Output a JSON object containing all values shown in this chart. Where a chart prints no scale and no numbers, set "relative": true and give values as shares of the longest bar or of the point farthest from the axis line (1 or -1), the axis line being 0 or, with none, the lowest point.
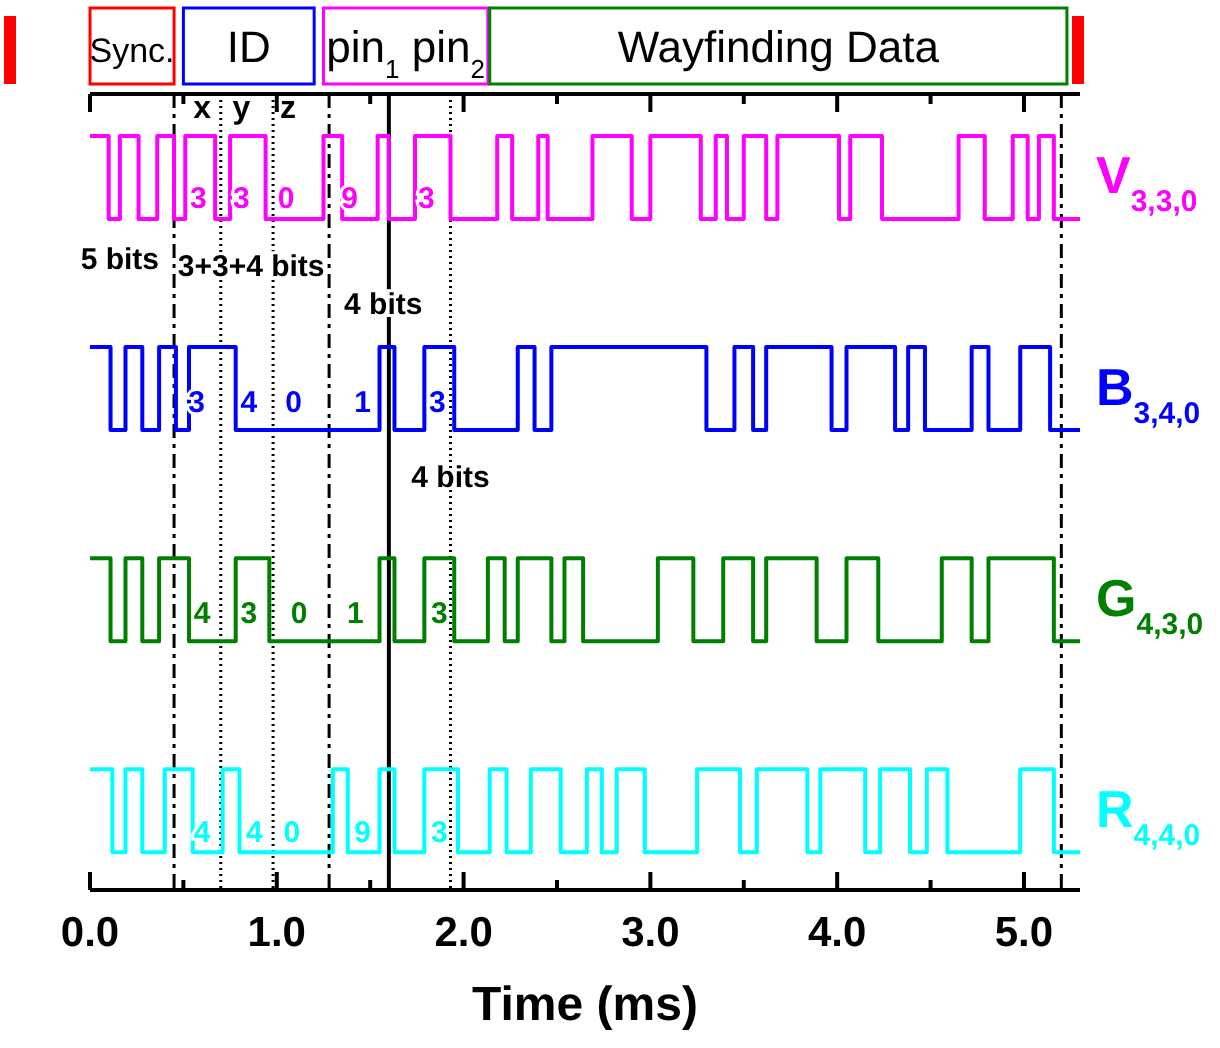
{
  "chart_data": {
    "type": "step",
    "relative": true,
    "xlabel": "Time (ms)",
    "legend": false,
    "xlim": [
      0,
      5.3
    ],
    "xticks": [
      {
        "value": 0,
        "label": "0.0"
      },
      {
        "value": 0.5,
        "label": null
      },
      {
        "value": 1,
        "label": "1.0"
      },
      {
        "value": 1.5,
        "label": null
      },
      {
        "value": 2,
        "label": "2.0"
      },
      {
        "value": 2.5,
        "label": null
      },
      {
        "value": 3,
        "label": "3.0"
      },
      {
        "value": 3.5,
        "label": null
      },
      {
        "value": 4,
        "label": "4.0"
      },
      {
        "value": 4.5,
        "label": null
      },
      {
        "value": 5,
        "label": "5.0"
      }
    ],
    "series": [
      {
        "name": "V$_{3,3,0}$",
        "color": "#ff00ff",
        "x": [
          0,
          0.1,
          0.16,
          0.26,
          0.36,
          0.45,
          0.51,
          0.67,
          0.75,
          0.94,
          1.25,
          1.35,
          1.54,
          1.6,
          1.74,
          1.93,
          2.18,
          2.26,
          2.4,
          2.45,
          2.69,
          2.9,
          3.0,
          3.27,
          3.35,
          3.41,
          3.5,
          3.62,
          3.68,
          4.01,
          4.07,
          4.24,
          4.65,
          4.79,
          4.94,
          5.02,
          5.08,
          5.16,
          5.3
        ],
        "values": [
          1,
          0.89,
          1,
          0.89,
          1,
          0.89,
          1,
          0.89,
          1,
          0.89,
          1,
          0.89,
          1,
          0.89,
          1,
          0.89,
          1,
          0.89,
          1,
          0.89,
          1,
          0.89,
          1,
          0.89,
          1,
          0.89,
          1,
          0.89,
          1,
          0.89,
          1,
          0.89,
          1,
          0.89,
          1,
          0.89,
          1,
          0.89,
          0.89
        ]
      },
      {
        "name": "B$_{3,4,0}$",
        "color": "#0000ff",
        "x": [
          0,
          0.11,
          0.19,
          0.28,
          0.37,
          0.46,
          0.53,
          0.78,
          1.55,
          1.63,
          1.79,
          1.95,
          2.29,
          2.38,
          2.47,
          3.3,
          3.45,
          3.55,
          3.62,
          3.97,
          4.05,
          4.31,
          4.38,
          4.47,
          4.72,
          4.81,
          4.98,
          5.14,
          5.3
        ],
        "values": [
          0.72,
          0.61,
          0.72,
          0.61,
          0.72,
          0.61,
          0.72,
          0.61,
          0.72,
          0.61,
          0.72,
          0.61,
          0.72,
          0.61,
          0.72,
          0.61,
          0.72,
          0.61,
          0.72,
          0.61,
          0.72,
          0.61,
          0.72,
          0.61,
          0.72,
          0.61,
          0.72,
          0.61,
          0.61
        ]
      },
      {
        "name": "G$_{4,3,0}$",
        "color": "#008000",
        "x": [
          0,
          0.11,
          0.19,
          0.28,
          0.37,
          0.53,
          0.78,
          0.96,
          1.55,
          1.63,
          1.79,
          1.95,
          2.13,
          2.22,
          2.29,
          2.47,
          2.54,
          2.64,
          3.04,
          3.23,
          3.39,
          3.55,
          3.62,
          3.89,
          4.05,
          4.22,
          4.56,
          4.72,
          4.81,
          5.16,
          5.3
        ],
        "values": [
          0.44,
          0.33,
          0.44,
          0.33,
          0.44,
          0.33,
          0.44,
          0.33,
          0.44,
          0.33,
          0.44,
          0.33,
          0.44,
          0.33,
          0.44,
          0.33,
          0.44,
          0.33,
          0.44,
          0.33,
          0.44,
          0.33,
          0.44,
          0.33,
          0.44,
          0.33,
          0.44,
          0.33,
          0.44,
          0.33,
          0.33
        ]
      },
      {
        "name": "R$_{4,4,0}$",
        "color": "#00ffff",
        "x": [
          0,
          0.12,
          0.19,
          0.28,
          0.4,
          0.55,
          0.71,
          0.8,
          1.3,
          1.38,
          1.55,
          1.63,
          1.79,
          1.97,
          2.14,
          2.23,
          2.36,
          2.52,
          2.66,
          2.74,
          2.82,
          2.97,
          3.25,
          3.48,
          3.57,
          3.84,
          3.91,
          4.15,
          4.23,
          4.39,
          4.48,
          4.59,
          4.98,
          5.16,
          5.3
        ],
        "values": [
          0.16,
          0.05,
          0.16,
          0.05,
          0.16,
          0.05,
          0.16,
          0.05,
          0.16,
          0.05,
          0.16,
          0.05,
          0.16,
          0.05,
          0.16,
          0.05,
          0.16,
          0.05,
          0.16,
          0.05,
          0.16,
          0.05,
          0.16,
          0.05,
          0.16,
          0.05,
          0.16,
          0.05,
          0.16,
          0.05,
          0.16,
          0.05,
          0.16,
          0.05,
          0.05
        ]
      }
    ],
    "ref_lines": [
      {
        "axis": "x",
        "value": 0.45,
        "line_style": "dashed"
      },
      {
        "axis": "x",
        "value": 0.7,
        "line_style": "dotted"
      },
      {
        "axis": "x",
        "value": 0.98,
        "line_style": "dotted"
      },
      {
        "axis": "x",
        "value": 1.28,
        "line_style": "dashed"
      },
      {
        "axis": "x",
        "value": 1.6,
        "line_style": "solid"
      },
      {
        "axis": "x",
        "value": 1.93,
        "line_style": "dotted"
      },
      {
        "axis": "x",
        "value": 5.2,
        "line_style": "dashed"
      }
    ],
    "annotations": [
      "Sync.",
      "ID",
      "pin$_{1}$ pin$_{2}$",
      "Wayfinding Data",
      "x",
      "y",
      "z",
      "5 bits",
      "3+3+4 bits",
      "4 bits",
      "4 bits",
      "3",
      "3",
      "0",
      "9",
      "3",
      "3",
      "4",
      "0",
      "1",
      "3",
      "4",
      "3",
      "0",
      "1",
      "3",
      "4",
      "4",
      "0",
      "9",
      "3"
    ]
  }
}
